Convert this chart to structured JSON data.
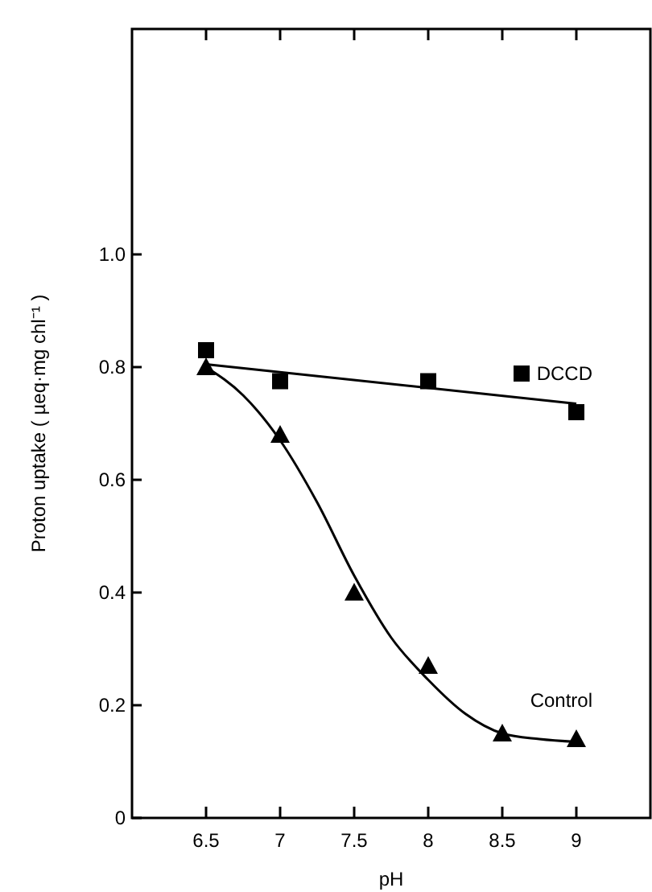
{
  "chart_data": {
    "type": "scatter",
    "xlabel": "pH",
    "ylabel": "Proton uptake ( µeq·mg chl⁻¹ )",
    "xlim": [
      6,
      9.5
    ],
    "ylim": [
      0,
      1.4
    ],
    "xticks": [
      6.5,
      7,
      7.5,
      8,
      8.5,
      9
    ],
    "yticks": [
      {
        "value": 0,
        "label": "0"
      },
      {
        "value": 0.2,
        "label": "0.2"
      },
      {
        "value": 0.4,
        "label": "0.4"
      },
      {
        "value": 0.6,
        "label": "0.6"
      },
      {
        "value": 0.8,
        "label": "0.8"
      },
      {
        "value": 1,
        "label": "1.0"
      }
    ],
    "grid": false,
    "legend": "right",
    "series": [
      {
        "name": "DCCD",
        "marker": "square",
        "color": "#000000",
        "x": [
          6.5,
          7,
          8,
          9
        ],
        "values": [
          0.83,
          0.775,
          0.775,
          0.72
        ]
      },
      {
        "name": "Control",
        "marker": "triangle",
        "color": "#000000",
        "x": [
          6.5,
          7,
          7.5,
          8,
          8.5,
          9
        ],
        "values": [
          0.8,
          0.68,
          0.4,
          0.27,
          0.15,
          0.14
        ]
      },
      {
        "type": "line",
        "marker": "none",
        "line_style": "solid",
        "color": "#000000",
        "x": [
          6.5,
          9
        ],
        "values": [
          0.805,
          0.735
        ]
      },
      {
        "type": "line",
        "marker": "none",
        "line_style": "solid",
        "color": "#000000",
        "x": [
          6.5,
          6.75,
          7,
          7.25,
          7.5,
          7.75,
          8,
          8.25,
          8.5,
          8.75,
          9
        ],
        "values": [
          0.8,
          0.75,
          0.67,
          0.56,
          0.43,
          0.32,
          0.245,
          0.185,
          0.15,
          0.14,
          0.135
        ]
      }
    ]
  }
}
